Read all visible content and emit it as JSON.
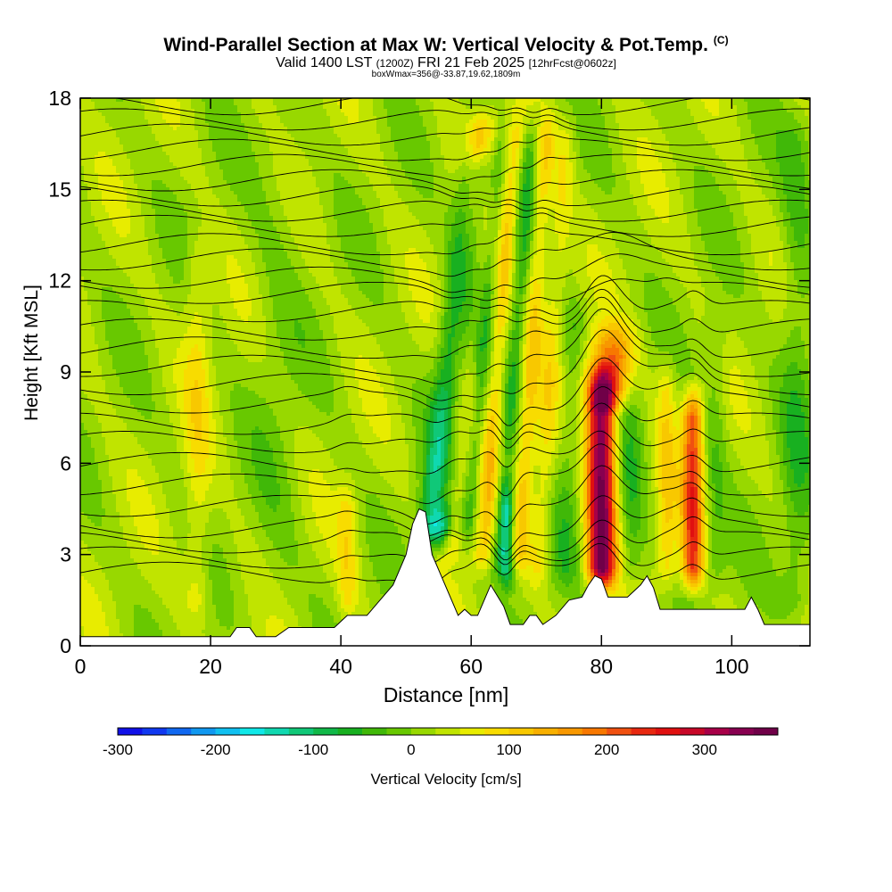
{
  "header": {
    "title": "Wind-Parallel Section at Max W: Vertical Velocity & Pot.Temp.",
    "title_mark": "(C)",
    "valid_prefix": "Valid 1400 LST",
    "valid_utc": "(1200Z)",
    "valid_date": "FRI 21 Feb 2025",
    "forecast": "[12hrFcst@0602z]",
    "subline": "boxWmax=356@-33.87,19.62,1809m"
  },
  "chart_data": {
    "type": "heatmap",
    "xlabel": "Distance [nm]",
    "ylabel": "Height [Kft MSL]",
    "xlim": [
      0,
      112
    ],
    "ylim": [
      0,
      18
    ],
    "x_ticks": [
      0,
      20,
      40,
      60,
      80,
      100
    ],
    "y_ticks": [
      0,
      3,
      6,
      9,
      12,
      15,
      18
    ],
    "background_w": 20,
    "w_features": [
      {
        "x": 54,
        "y0": 2.8,
        "y1": 17,
        "w": -180,
        "width": 2.5,
        "slope": 0.55
      },
      {
        "x": 55.5,
        "y0": 4,
        "y1": 18,
        "w": 120,
        "width": 1.6,
        "slope": 0.45
      },
      {
        "x": 57,
        "y0": 2.5,
        "y1": 18,
        "w": 80,
        "width": 1.5,
        "slope": 0.45
      },
      {
        "x": 59,
        "y0": 3,
        "y1": 18,
        "w": -60,
        "width": 1.5,
        "slope": 0.4
      },
      {
        "x": 61.5,
        "y0": 2,
        "y1": 18,
        "w": 90,
        "width": 1.6,
        "slope": 0.35
      },
      {
        "x": 64,
        "y0": 2,
        "y1": 18,
        "w": -70,
        "width": 1.5,
        "slope": 0.35
      },
      {
        "x": 65.5,
        "y0": 1.5,
        "y1": 6,
        "w": -140,
        "width": 1.2,
        "slope": 0
      },
      {
        "x": 67,
        "y0": 2,
        "y1": 18,
        "w": 80,
        "width": 1.5,
        "slope": 0.3
      },
      {
        "x": 70,
        "y0": 1.5,
        "y1": 18,
        "w": 50,
        "width": 1.5,
        "slope": 0.3
      },
      {
        "x": 74,
        "y0": 1.5,
        "y1": 12,
        "w": -40,
        "width": 2,
        "slope": 0.2
      },
      {
        "x": 80,
        "y0": 1.5,
        "y1": 9.5,
        "w": 340,
        "width": 2.2,
        "slope": 0
      },
      {
        "x": 81,
        "y0": 7.5,
        "y1": 11,
        "w": 180,
        "width": 3.5,
        "slope": 0.2
      },
      {
        "x": 84.5,
        "y0": 1.5,
        "y1": 10,
        "w": -50,
        "width": 2,
        "slope": 0
      },
      {
        "x": 94,
        "y0": 1.5,
        "y1": 9,
        "w": 200,
        "width": 1.6,
        "slope": 0
      },
      {
        "x": 90,
        "y0": 1.5,
        "y1": 10,
        "w": 70,
        "width": 1.5,
        "slope": 0
      },
      {
        "x": 97.5,
        "y0": 1.5,
        "y1": 12,
        "w": -40,
        "width": 1.8,
        "slope": 0
      },
      {
        "x": 30,
        "y0": 0.5,
        "y1": 18,
        "w": -20,
        "width": 4,
        "slope": 0
      },
      {
        "x": 18,
        "y0": 0.5,
        "y1": 14,
        "w": 50,
        "width": 2,
        "slope": 0
      },
      {
        "x": 41,
        "y0": 0.5,
        "y1": 6,
        "w": 60,
        "width": 1.5,
        "slope": 0
      },
      {
        "x": 110,
        "y0": 0.5,
        "y1": 18,
        "w": -50,
        "width": 2.5,
        "slope": 0
      }
    ],
    "terrain": [
      [
        0,
        0.3
      ],
      [
        23,
        0.3
      ],
      [
        24,
        0.6
      ],
      [
        26,
        0.6
      ],
      [
        27,
        0.3
      ],
      [
        30,
        0.3
      ],
      [
        32,
        0.6
      ],
      [
        39,
        0.6
      ],
      [
        41,
        1
      ],
      [
        44,
        1
      ],
      [
        46,
        1.5
      ],
      [
        48,
        2
      ],
      [
        50,
        3
      ],
      [
        51,
        4
      ],
      [
        52,
        4.5
      ],
      [
        53,
        4.4
      ],
      [
        54,
        3
      ],
      [
        55,
        2.5
      ],
      [
        56,
        2
      ],
      [
        57,
        1.5
      ],
      [
        58,
        1
      ],
      [
        59,
        1.2
      ],
      [
        60,
        1
      ],
      [
        61,
        1
      ],
      [
        63,
        2
      ],
      [
        65,
        1.3
      ],
      [
        66,
        0.7
      ],
      [
        68,
        0.7
      ],
      [
        69,
        1
      ],
      [
        70,
        1
      ],
      [
        71,
        0.7
      ],
      [
        73,
        1
      ],
      [
        75,
        1.5
      ],
      [
        77,
        1.6
      ],
      [
        78,
        2
      ],
      [
        79,
        2.3
      ],
      [
        80,
        2.2
      ],
      [
        81,
        1.6
      ],
      [
        84,
        1.6
      ],
      [
        86,
        2
      ],
      [
        87,
        2.3
      ],
      [
        88,
        1.9
      ],
      [
        89,
        1.2
      ],
      [
        102,
        1.2
      ],
      [
        103,
        1.6
      ],
      [
        104,
        1.2
      ],
      [
        105,
        0.7
      ],
      [
        112,
        0.7
      ]
    ],
    "theta_levels": [
      2.4,
      2.9,
      3.4,
      3.9,
      4.6,
      5.3,
      6.0,
      6.7,
      7.3,
      8.0,
      8.6,
      9.2,
      9.8,
      10.4,
      11.0,
      11.6,
      12.1,
      12.7,
      13.2,
      13.8,
      14.3,
      14.8,
      15.3,
      15.8,
      16.3,
      16.8,
      17.3,
      17.8
    ],
    "colorbar": {
      "label": "Vertical Velocity [cm/s]",
      "min": -300,
      "max": 375,
      "step": 25,
      "tick_values": [
        -300,
        -200,
        -100,
        0,
        100,
        200,
        300
      ],
      "tick_labels": [
        "-300",
        "-200",
        "-100",
        "0",
        "100",
        "200",
        "300"
      ],
      "colors": [
        "#1010e8",
        "#1038f0",
        "#1068f0",
        "#1098f0",
        "#10c0f0",
        "#10e8e8",
        "#10d8b0",
        "#10c878",
        "#10b848",
        "#18b020",
        "#40b808",
        "#68c800",
        "#98d800",
        "#c0e400",
        "#e8ec00",
        "#f8dc00",
        "#f8c800",
        "#f8b000",
        "#f89800",
        "#f87800",
        "#f05010",
        "#e82810",
        "#e01010",
        "#c80828",
        "#a80048",
        "#880050",
        "#700048"
      ]
    }
  }
}
